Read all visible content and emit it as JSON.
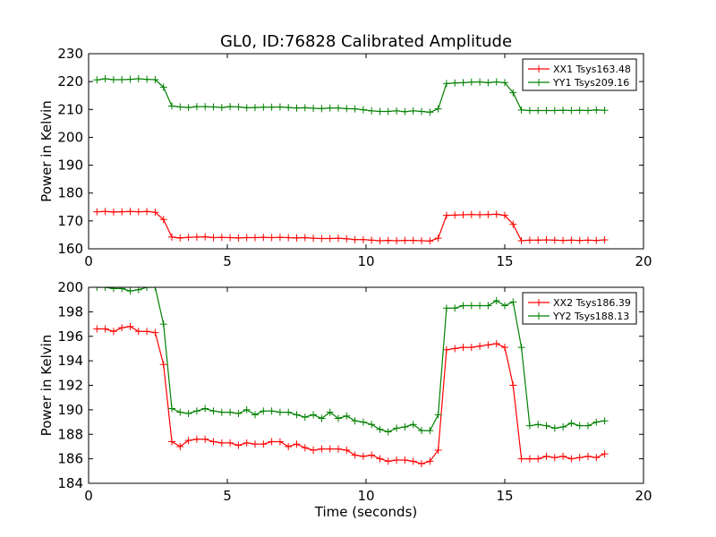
{
  "title": "GL0, ID:76828 Calibrated Amplitude",
  "xlabel": "Time (seconds)",
  "chart_data": [
    {
      "type": "line",
      "title": "GL0, ID:76828 Calibrated Amplitude",
      "xlabel": "",
      "ylabel": "Power in Kelvin",
      "xlim": [
        0,
        20
      ],
      "ylim": [
        160,
        230
      ],
      "xticks": [
        0,
        5,
        10,
        15,
        20
      ],
      "yticks": [
        160,
        170,
        180,
        190,
        200,
        210,
        220,
        230
      ],
      "grid": false,
      "legend": "top-right",
      "x": [
        0.3,
        0.6,
        0.9,
        1.2,
        1.5,
        1.8,
        2.1,
        2.4,
        2.7,
        3.0,
        3.3,
        3.6,
        3.9,
        4.2,
        4.5,
        4.8,
        5.1,
        5.4,
        5.7,
        6.0,
        6.3,
        6.6,
        6.9,
        7.2,
        7.5,
        7.8,
        8.1,
        8.4,
        8.7,
        9.0,
        9.3,
        9.6,
        9.9,
        10.2,
        10.5,
        10.8,
        11.1,
        11.4,
        11.7,
        12.0,
        12.3,
        12.6,
        12.9,
        13.2,
        13.5,
        13.8,
        14.1,
        14.4,
        14.7,
        15.0,
        15.3,
        15.6,
        15.9,
        16.2,
        16.5,
        16.8,
        17.1,
        17.4,
        17.7,
        18.0,
        18.3,
        18.6
      ],
      "series": [
        {
          "name": "XX1 Tsys163.48",
          "color": "#ff0000",
          "values": [
            173.3,
            173.4,
            173.2,
            173.3,
            173.4,
            173.3,
            173.4,
            173.1,
            170.5,
            164.2,
            163.9,
            164.1,
            164.2,
            164.3,
            164.0,
            164.1,
            164.0,
            163.9,
            164.0,
            164.0,
            164.1,
            164.0,
            164.1,
            164.0,
            163.9,
            164.0,
            163.8,
            163.7,
            163.7,
            163.8,
            163.6,
            163.3,
            163.3,
            163.1,
            162.9,
            163.0,
            162.9,
            163.0,
            163.0,
            162.9,
            162.8,
            163.8,
            172.0,
            172.1,
            172.2,
            172.3,
            172.2,
            172.3,
            172.4,
            172.0,
            168.8,
            162.9,
            163.1,
            163.1,
            163.2,
            163.1,
            163.0,
            163.1,
            163.0,
            163.1,
            163.0,
            163.2
          ]
        },
        {
          "name": "YY1 Tsys209.16",
          "color": "#008000",
          "values": [
            220.6,
            221.0,
            220.7,
            220.7,
            220.8,
            221.0,
            220.8,
            220.7,
            218.0,
            211.2,
            210.9,
            210.7,
            211.0,
            211.0,
            210.9,
            210.7,
            211.0,
            210.9,
            210.6,
            210.7,
            210.8,
            210.8,
            210.9,
            210.7,
            210.5,
            210.6,
            210.4,
            210.3,
            210.5,
            210.5,
            210.3,
            210.2,
            209.9,
            209.5,
            209.3,
            209.3,
            209.5,
            209.2,
            209.5,
            209.3,
            209.0,
            210.2,
            219.3,
            219.5,
            219.6,
            219.8,
            219.9,
            219.6,
            219.9,
            219.6,
            216.0,
            209.8,
            209.6,
            209.6,
            209.6,
            209.6,
            209.7,
            209.6,
            209.7,
            209.6,
            209.8,
            209.7
          ]
        }
      ]
    },
    {
      "type": "line",
      "title": "",
      "xlabel": "Time (seconds)",
      "ylabel": "Power in Kelvin",
      "xlim": [
        0,
        20
      ],
      "ylim": [
        184,
        200
      ],
      "xticks": [
        0,
        5,
        10,
        15,
        20
      ],
      "yticks": [
        184,
        186,
        188,
        190,
        192,
        194,
        196,
        198,
        200
      ],
      "grid": false,
      "legend": "top-right",
      "x": [
        0.3,
        0.6,
        0.9,
        1.2,
        1.5,
        1.8,
        2.1,
        2.4,
        2.7,
        3.0,
        3.3,
        3.6,
        3.9,
        4.2,
        4.5,
        4.8,
        5.1,
        5.4,
        5.7,
        6.0,
        6.3,
        6.6,
        6.9,
        7.2,
        7.5,
        7.8,
        8.1,
        8.4,
        8.7,
        9.0,
        9.3,
        9.6,
        9.9,
        10.2,
        10.5,
        10.8,
        11.1,
        11.4,
        11.7,
        12.0,
        12.3,
        12.6,
        12.9,
        13.2,
        13.5,
        13.8,
        14.1,
        14.4,
        14.7,
        15.0,
        15.3,
        15.6,
        15.9,
        16.2,
        16.5,
        16.8,
        17.1,
        17.4,
        17.7,
        18.0,
        18.3,
        18.6
      ],
      "series": [
        {
          "name": "XX2 Tsys186.39",
          "color": "#ff0000",
          "values": [
            196.6,
            196.6,
            196.4,
            196.7,
            196.8,
            196.4,
            196.4,
            196.3,
            193.7,
            187.4,
            187.0,
            187.5,
            187.6,
            187.6,
            187.4,
            187.3,
            187.3,
            187.1,
            187.3,
            187.2,
            187.2,
            187.4,
            187.4,
            187.0,
            187.2,
            186.9,
            186.7,
            186.8,
            186.8,
            186.8,
            186.7,
            186.3,
            186.2,
            186.3,
            186.0,
            185.8,
            185.9,
            185.9,
            185.8,
            185.6,
            185.8,
            186.7,
            194.9,
            195.0,
            195.1,
            195.1,
            195.2,
            195.3,
            195.4,
            195.1,
            192.0,
            186.0,
            186.0,
            186.0,
            186.2,
            186.1,
            186.2,
            186.0,
            186.1,
            186.2,
            186.1,
            186.4
          ]
        },
        {
          "name": "YY2 Tsys188.13",
          "color": "#008000",
          "values": [
            200.0,
            200.0,
            199.9,
            199.9,
            199.7,
            199.8,
            200.0,
            200.0,
            197.0,
            190.1,
            189.8,
            189.7,
            189.9,
            190.1,
            189.9,
            189.8,
            189.8,
            189.7,
            190.0,
            189.6,
            189.9,
            189.9,
            189.8,
            189.8,
            189.6,
            189.4,
            189.6,
            189.3,
            189.8,
            189.3,
            189.5,
            189.1,
            189.0,
            188.8,
            188.4,
            188.2,
            188.5,
            188.6,
            188.8,
            188.3,
            188.3,
            189.6,
            198.3,
            198.3,
            198.5,
            198.5,
            198.5,
            198.5,
            198.9,
            198.5,
            198.8,
            195.1,
            188.7,
            188.8,
            188.7,
            188.5,
            188.6,
            188.9,
            188.7,
            188.7,
            189.0,
            189.1
          ]
        }
      ]
    }
  ]
}
